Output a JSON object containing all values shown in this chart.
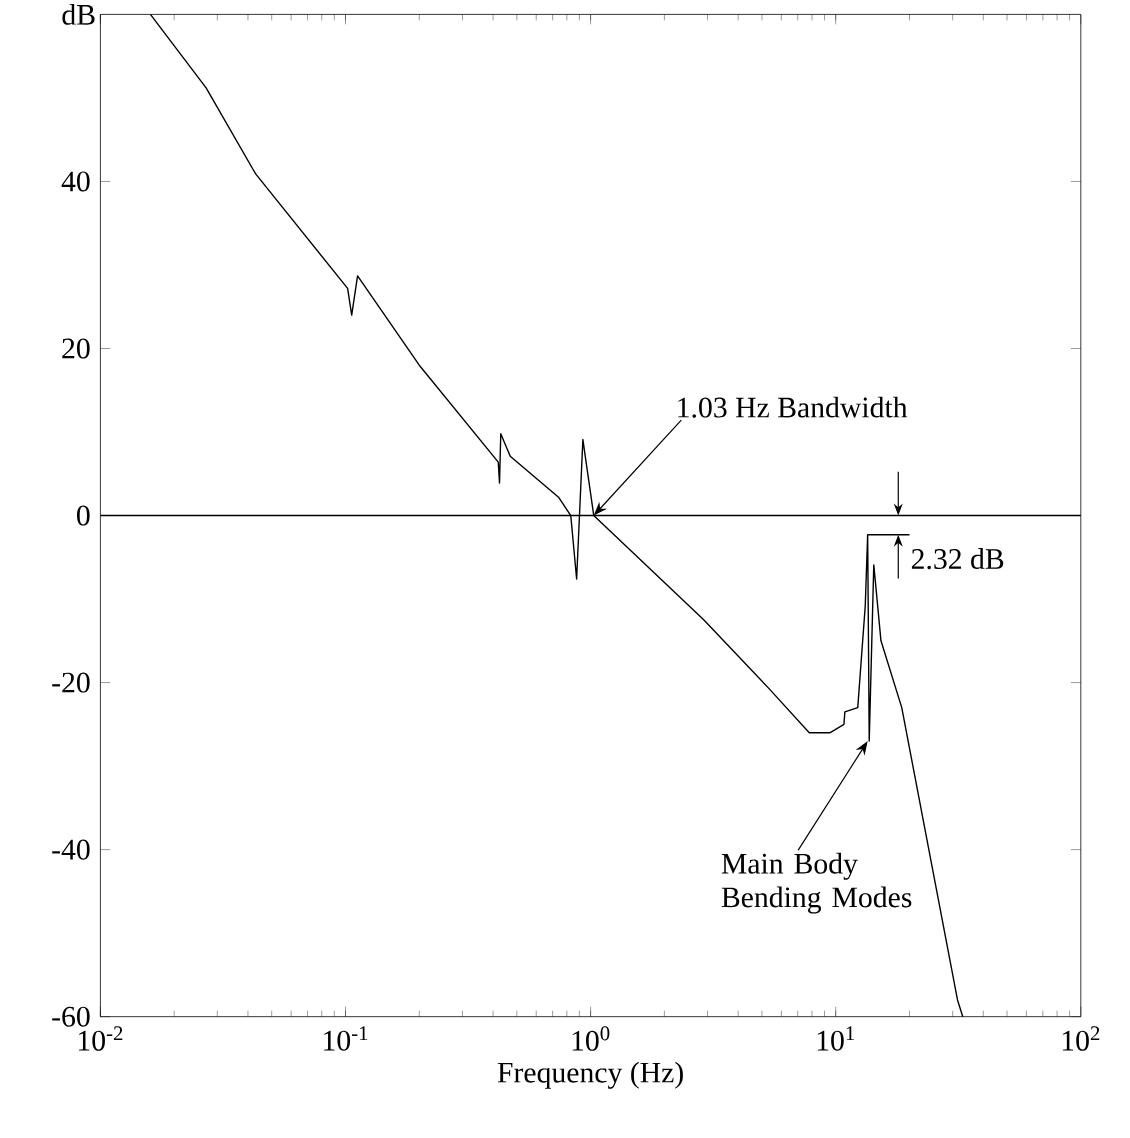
{
  "chart_data": {
    "type": "line",
    "xlabel": "Frequency  (Hz)",
    "ylabel": "dB",
    "log": "x",
    "xlim": [
      0.01,
      100
    ],
    "ylim": [
      -60,
      60
    ],
    "xticks": [
      {
        "value": 0.01,
        "label": "10$^{-2}$"
      },
      {
        "value": 0.1,
        "label": "10$^{-1}$"
      },
      {
        "value": 1,
        "label": "10$^{0}$"
      },
      {
        "value": 10,
        "label": "10$^{1}$"
      },
      {
        "value": 100,
        "label": "10$^{2}$"
      }
    ],
    "yticks": [
      -60,
      -40,
      -20,
      0,
      20,
      40
    ],
    "x": [
      0.016,
      0.027,
      0.043,
      0.102,
      0.106,
      0.112,
      0.2,
      0.42,
      0.425,
      0.43,
      0.47,
      0.74,
      0.83,
      0.877,
      0.93,
      1.03,
      2.9,
      5.3,
      7.8,
      9.5,
      10.8,
      10.9,
      12.3,
      13.2,
      13.5,
      13.7,
      14.3,
      15.3,
      18.6,
      31.4,
      33
    ],
    "series": [
      {
        "color": "#000000",
        "values": [
          60,
          51.2,
          40.9,
          27.2,
          24,
          28.7,
          18,
          6.4,
          3.9,
          9.8,
          7.1,
          2.2,
          0,
          -7.6,
          9.1,
          0,
          -12.5,
          -20.6,
          -26,
          -26,
          -25,
          -23.5,
          -23,
          -10.8,
          -2.3,
          -27,
          -5.9,
          -15,
          -23,
          -58,
          -60
        ]
      },
      {
        "color": "#000000",
        "x": [
          13.5,
          20
        ],
        "values": [
          -2.3,
          -2.3
        ]
      }
    ],
    "ref_lines": [
      {
        "axis": "y",
        "value": 0,
        "color": "#000000"
      }
    ],
    "annotations": [
      {
        "text": "1.03 Hz Bandwidth",
        "x": 1.03,
        "y": 0
      },
      "2.32 dB",
      {
        "text": "Main Body Bending Modes",
        "x": 13.5,
        "y": -27
      }
    ],
    "grid": false,
    "marker": "none",
    "line_style": "solid"
  }
}
